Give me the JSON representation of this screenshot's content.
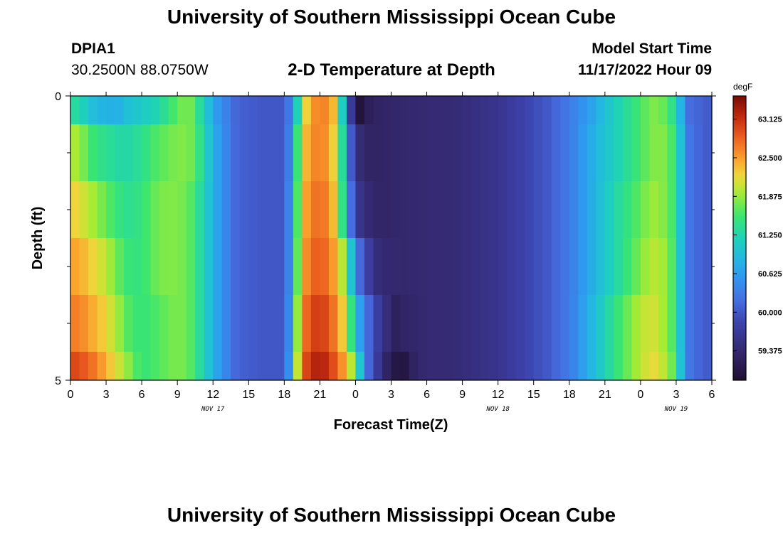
{
  "header": {
    "title_top": "University of Southern Mississippi Ocean Cube",
    "station_id": "DPIA1",
    "station_coords": "30.2500N  88.0750W",
    "plot_title": "2-D Temperature at Depth",
    "model_start_label": "Model Start Time",
    "model_start_value": "11/17/2022 Hour 09",
    "title_bottom": "University of Southern Mississippi Ocean Cube"
  },
  "chart_data": {
    "type": "heatmap",
    "title": "2-D Temperature at Depth",
    "xlabel": "Forecast Time(Z)",
    "ylabel": "Depth (ft)",
    "ylim": [
      0,
      5
    ],
    "y_tick_labels": [
      "0",
      "5"
    ],
    "x_tick_labels": [
      "0",
      "3",
      "6",
      "9",
      "12",
      "15",
      "18",
      "21",
      "0",
      "3",
      "6",
      "9",
      "12",
      "15",
      "18",
      "21",
      "0",
      "3",
      "6"
    ],
    "date_labels": [
      {
        "text": "NOV 17",
        "hour": 12
      },
      {
        "text": "NOV 18",
        "hour": 36
      },
      {
        "text": "NOV 19",
        "hour": 51
      }
    ],
    "x_range_hours": [
      0,
      54
    ],
    "colorbar": {
      "unit": "degF",
      "min": 58.9,
      "max": 63.5,
      "tick_labels": [
        "63.125",
        "62.500",
        "61.875",
        "61.250",
        "60.625",
        "60.000",
        "59.375"
      ],
      "tick_values": [
        63.125,
        62.5,
        61.875,
        61.25,
        60.625,
        60.0,
        59.375
      ]
    },
    "depth_levels_ft": [
      0,
      0.5,
      1.5,
      2.5,
      3.5,
      4.5,
      5
    ],
    "series": [
      {
        "name": "0 ft",
        "hours": [
          0,
          1,
          2,
          3,
          4,
          5,
          6,
          7,
          8,
          9,
          10,
          11,
          12,
          14,
          16,
          18,
          18.7,
          19.3,
          20,
          21,
          22,
          22.6,
          23,
          23.4,
          23.7,
          24,
          24.5,
          25,
          26,
          28,
          30,
          32,
          34,
          36,
          38,
          40,
          42,
          44,
          46,
          48,
          49,
          50,
          51,
          51.5,
          52,
          53,
          54
        ],
        "values": [
          61.4,
          61.2,
          60.9,
          60.8,
          60.8,
          61.0,
          61.1,
          61.2,
          61.4,
          61.7,
          61.8,
          61.3,
          60.7,
          60.1,
          60.0,
          60.0,
          60.5,
          61.5,
          62.4,
          62.7,
          62.5,
          61.9,
          60.8,
          59.9,
          59.6,
          58.9,
          59.0,
          59.2,
          59.3,
          59.35,
          59.4,
          59.4,
          59.5,
          59.6,
          59.8,
          60.0,
          60.3,
          60.7,
          61.2,
          61.6,
          61.8,
          61.7,
          61.3,
          60.7,
          60.2,
          60.1,
          60.0
        ]
      },
      {
        "name": "1 ft",
        "hours": [
          0,
          1,
          2,
          3,
          4,
          5,
          6,
          7,
          8,
          9,
          10,
          11,
          12,
          14,
          16,
          18,
          18.7,
          19.3,
          20,
          21,
          22,
          23,
          23.5,
          24,
          25,
          26,
          28,
          30,
          32,
          34,
          36,
          38,
          40,
          42,
          44,
          46,
          48,
          49,
          50,
          51,
          51.5,
          52,
          53,
          54
        ],
        "values": [
          62.0,
          61.8,
          61.5,
          61.4,
          61.3,
          61.3,
          61.4,
          61.6,
          61.7,
          61.8,
          61.8,
          61.4,
          60.8,
          60.1,
          60.0,
          60.0,
          60.6,
          61.9,
          62.5,
          62.7,
          62.4,
          61.2,
          60.2,
          59.5,
          59.3,
          59.3,
          59.35,
          59.4,
          59.4,
          59.5,
          59.6,
          59.8,
          60.0,
          60.3,
          60.8,
          61.2,
          61.6,
          61.8,
          61.8,
          61.5,
          60.8,
          60.3,
          60.1,
          60.0
        ]
      },
      {
        "name": "2 ft",
        "hours": [
          0,
          1,
          2,
          3,
          4,
          5,
          6,
          7,
          8,
          9,
          10,
          11,
          12,
          14,
          16,
          18,
          18.7,
          19.3,
          20,
          21,
          22,
          22.8,
          23.3,
          24,
          25,
          26,
          28,
          30,
          32,
          34,
          36,
          38,
          40,
          42,
          44,
          46,
          48,
          49,
          50,
          51,
          51.5,
          52,
          53,
          54
        ],
        "values": [
          62.3,
          62.1,
          61.9,
          61.7,
          61.5,
          61.4,
          61.5,
          61.7,
          61.8,
          61.8,
          61.7,
          61.3,
          60.8,
          60.1,
          60.0,
          60.0,
          60.7,
          62.0,
          62.6,
          62.8,
          62.5,
          61.6,
          60.6,
          59.7,
          59.4,
          59.3,
          59.35,
          59.4,
          59.4,
          59.5,
          59.6,
          59.8,
          60.0,
          60.3,
          60.8,
          61.3,
          61.7,
          61.9,
          61.8,
          61.5,
          60.8,
          60.3,
          60.1,
          60.0
        ]
      },
      {
        "name": "3 ft",
        "hours": [
          0,
          1,
          2,
          3,
          4,
          5,
          6,
          7,
          8,
          9,
          10,
          11,
          12,
          14,
          16,
          18,
          18.7,
          19.3,
          20,
          21,
          22,
          23,
          23.7,
          24.5,
          25.5,
          26,
          28,
          30,
          32,
          34,
          36,
          38,
          40,
          42,
          44,
          46,
          48,
          49,
          50,
          51,
          51.5,
          52,
          53,
          54
        ],
        "values": [
          62.5,
          62.4,
          62.2,
          62.0,
          61.7,
          61.5,
          61.5,
          61.7,
          61.8,
          61.8,
          61.7,
          61.3,
          60.8,
          60.1,
          60.0,
          60.0,
          60.7,
          62.1,
          62.7,
          62.9,
          62.6,
          61.9,
          60.9,
          60.0,
          59.6,
          59.4,
          59.35,
          59.4,
          59.4,
          59.5,
          59.6,
          59.8,
          60.0,
          60.3,
          60.8,
          61.3,
          61.8,
          62.0,
          61.9,
          61.5,
          60.8,
          60.3,
          60.1,
          60.0
        ]
      },
      {
        "name": "4 ft",
        "hours": [
          0,
          1,
          2,
          3,
          4,
          5,
          6,
          7,
          8,
          9,
          10,
          11,
          12,
          14,
          16,
          18,
          18.7,
          19.3,
          20,
          21,
          22,
          23,
          23.7,
          24.5,
          25.5,
          26.5,
          27.5,
          28,
          30,
          32,
          34,
          36,
          38,
          40,
          42,
          44,
          46,
          48,
          49,
          50,
          51,
          51.5,
          52,
          53,
          54
        ],
        "values": [
          62.7,
          62.6,
          62.4,
          62.2,
          61.9,
          61.6,
          61.5,
          61.6,
          61.7,
          61.8,
          61.7,
          61.3,
          60.8,
          60.1,
          60.0,
          60.0,
          60.8,
          62.3,
          62.9,
          63.1,
          62.8,
          62.2,
          61.4,
          60.5,
          59.9,
          59.5,
          59.2,
          59.3,
          59.4,
          59.4,
          59.5,
          59.6,
          59.8,
          60.0,
          60.3,
          60.9,
          61.5,
          62.0,
          62.1,
          61.9,
          61.5,
          60.8,
          60.3,
          60.1,
          60.0
        ]
      },
      {
        "name": "5 ft",
        "hours": [
          0,
          1,
          2,
          3,
          4,
          5,
          6,
          7,
          8,
          9,
          10,
          11,
          12,
          14,
          16,
          18,
          18.7,
          19.3,
          20,
          21,
          22,
          23,
          24,
          24.5,
          25,
          26,
          27,
          28,
          29,
          30,
          32,
          34,
          36,
          38,
          40,
          42,
          44,
          46,
          48,
          49,
          50,
          51,
          51.5,
          52,
          53,
          54
        ],
        "values": [
          63.0,
          62.9,
          62.7,
          62.4,
          62.1,
          61.8,
          61.5,
          61.6,
          61.7,
          61.8,
          61.7,
          61.3,
          60.8,
          60.1,
          60.0,
          60.0,
          60.9,
          62.5,
          63.1,
          63.3,
          63.0,
          62.5,
          61.7,
          60.8,
          60.2,
          59.6,
          59.1,
          59.0,
          59.3,
          59.4,
          59.4,
          59.5,
          59.6,
          59.8,
          60.0,
          60.3,
          60.9,
          61.5,
          62.0,
          62.2,
          62.0,
          61.6,
          60.8,
          60.3,
          60.1,
          60.0
        ]
      }
    ],
    "hour_step": 0.75
  }
}
